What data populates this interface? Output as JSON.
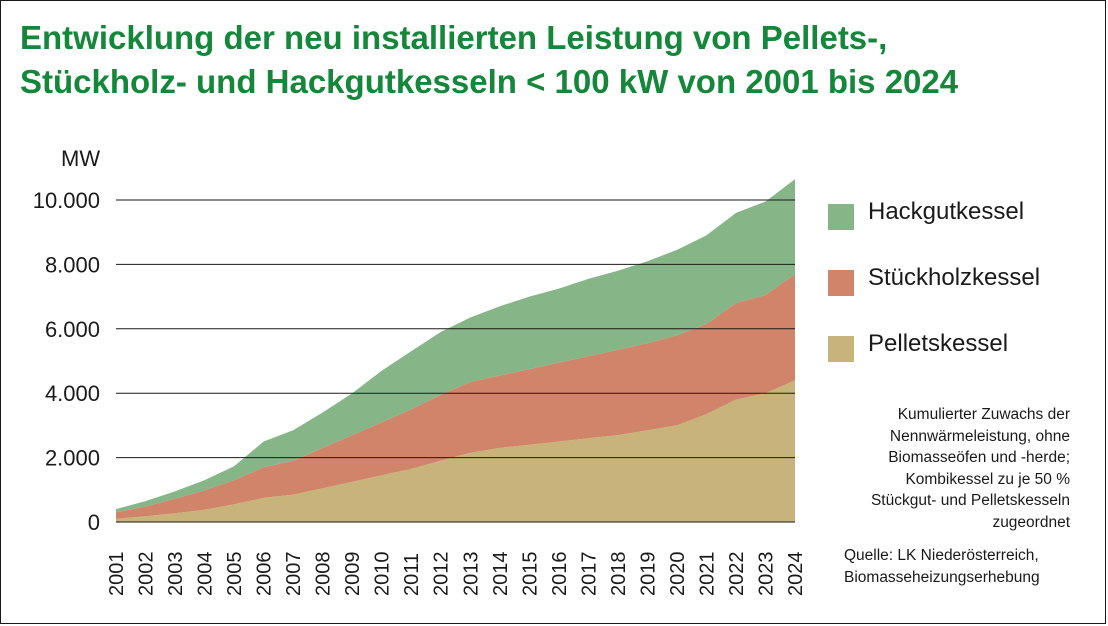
{
  "title": {
    "line1": "Entwicklung der neu installierten Leistung von Pellets-,",
    "line2": "Stückholz- und Hackgutkesseln < 100 kW von 2001 bis 2024"
  },
  "colors": {
    "title": "#14873a",
    "hackgut": "#86b587",
    "stueckholz": "#d0856a",
    "pellets": "#c8b47a",
    "grid": "#1a1a1a"
  },
  "legend": [
    {
      "key": "hackgut",
      "label": "Hackgutkessel"
    },
    {
      "key": "stueckholz",
      "label": "Stückholzkessel"
    },
    {
      "key": "pellets",
      "label": "Pelletskessel"
    }
  ],
  "note": [
    "Kumulierter Zuwachs der",
    "Nennwärmeleistung, ohne",
    "Biomasseöfen und -herde;",
    "Kombikessel zu je 50 %",
    "Stückgut- und Pelletskesseln",
    "zugeordnet"
  ],
  "source": [
    "Quelle: LK Niederösterreich,",
    "Biomasseheizungserhebung"
  ],
  "chart_data": {
    "type": "area",
    "stacked": true,
    "title": "Entwicklung der neu installierten Leistung von Pellets-, Stückholz- und Hackgutkesseln < 100 kW von 2001 bis 2024",
    "ylabel": "MW",
    "xlabel": "",
    "ylim": [
      0,
      10000
    ],
    "yticks": [
      0,
      2000,
      4000,
      6000,
      8000,
      10000
    ],
    "ytick_labels": [
      "0",
      "2.000",
      "4.000",
      "6.000",
      "8.000",
      "10.000"
    ],
    "grid": true,
    "legend_position": "right",
    "categories": [
      "2001",
      "2002",
      "2003",
      "2004",
      "2005",
      "2006",
      "2007",
      "2008",
      "2009",
      "2010",
      "2011",
      "2012",
      "2013",
      "2014",
      "2015",
      "2016",
      "2017",
      "2018",
      "2019",
      "2020",
      "2021",
      "2022",
      "2023",
      "2024"
    ],
    "series": [
      {
        "name": "Pelletskessel",
        "key": "pellets",
        "values": [
          100,
          180,
          270,
          380,
          550,
          750,
          850,
          1050,
          1250,
          1450,
          1650,
          1900,
          2150,
          2300,
          2400,
          2500,
          2600,
          2700,
          2850,
          3000,
          3350,
          3800,
          4000,
          4400
        ]
      },
      {
        "name": "Stückholzkessel",
        "key": "stueckholz",
        "values": [
          200,
          300,
          450,
          600,
          750,
          950,
          1050,
          1250,
          1450,
          1650,
          1850,
          2050,
          2200,
          2250,
          2350,
          2450,
          2550,
          2650,
          2700,
          2800,
          2800,
          3000,
          3050,
          3300
        ]
      },
      {
        "name": "Hackgutkessel",
        "key": "hackgut",
        "values": [
          100,
          170,
          230,
          320,
          430,
          800,
          950,
          1100,
          1300,
          1600,
          1800,
          1950,
          2000,
          2150,
          2250,
          2300,
          2400,
          2450,
          2550,
          2650,
          2750,
          2800,
          2900,
          2950
        ]
      }
    ]
  }
}
